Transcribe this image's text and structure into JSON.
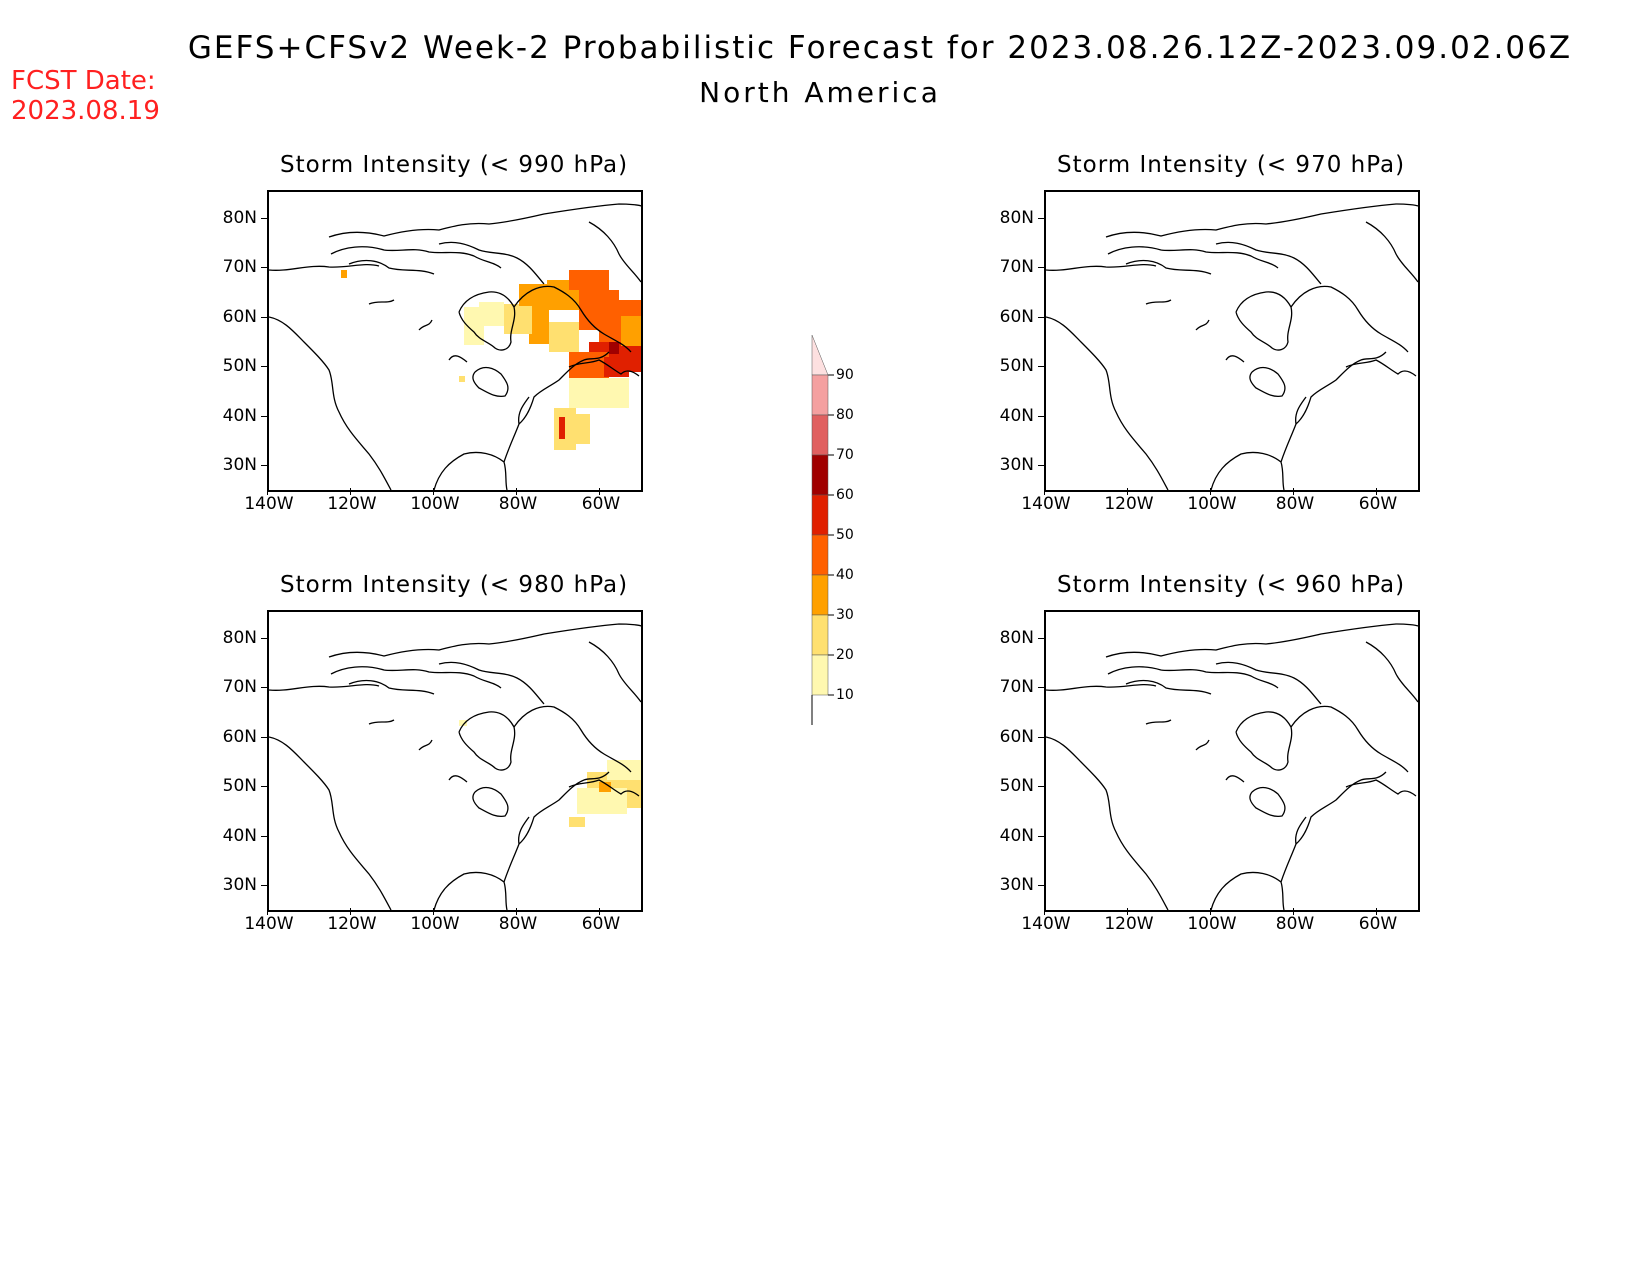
{
  "header": {
    "title": "GEFS+CFSv2 Week-2 Probabilistic Forecast for 2023.08.26.12Z-2023.09.02.06Z",
    "subtitle": "North America",
    "fcst_label": "FCST Date:",
    "fcst_date": "2023.08.19"
  },
  "axes": {
    "lat_labels": [
      "80N",
      "70N",
      "60N",
      "50N",
      "40N",
      "30N"
    ],
    "lon_labels": [
      "140W",
      "120W",
      "100W",
      "80W",
      "60W"
    ]
  },
  "panels": [
    {
      "title": "Storm Intensity (< 990 hPa)",
      "shading": "high"
    },
    {
      "title": "Storm Intensity (< 970 hPa)",
      "shading": "none"
    },
    {
      "title": "Storm Intensity (< 980 hPa)",
      "shading": "low"
    },
    {
      "title": "Storm Intensity (< 960 hPa)",
      "shading": "none"
    }
  ],
  "colorbar": {
    "levels": [
      "90",
      "80",
      "70",
      "60",
      "50",
      "40",
      "30",
      "20",
      "10"
    ],
    "colors": [
      "#fde0e0",
      "#f4a0a0",
      "#e06060",
      "#a00000",
      "#e02000",
      "#ff6000",
      "#ffa000",
      "#ffe070",
      "#fff8b0"
    ]
  }
}
